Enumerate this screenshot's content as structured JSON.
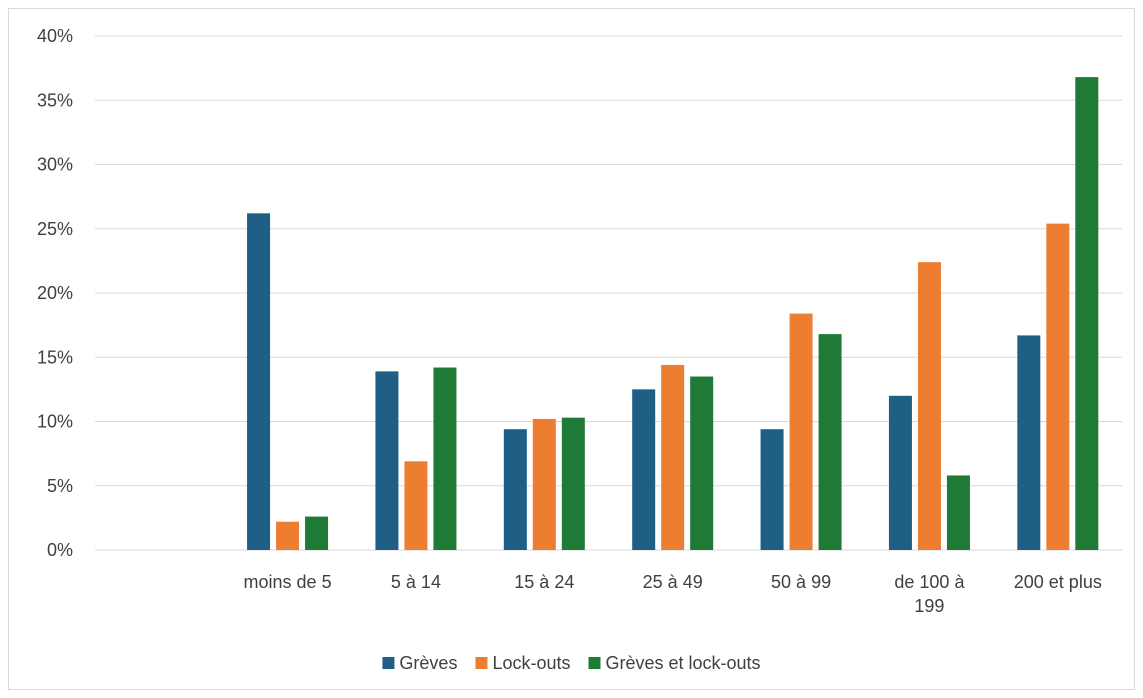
{
  "chart_data": {
    "type": "bar",
    "title": "",
    "xlabel": "",
    "ylabel": "",
    "categories": [
      [
        ""
      ],
      [
        "moins de 5"
      ],
      [
        "5 à 14"
      ],
      [
        "15 à 24"
      ],
      [
        "25 à 49"
      ],
      [
        "50 à 99"
      ],
      [
        "de 100 à",
        "199"
      ],
      [
        "200 et plus"
      ]
    ],
    "series": [
      {
        "name": "Grèves",
        "color": "#1f5f86",
        "values": [
          null,
          26.2,
          13.9,
          9.4,
          12.5,
          9.4,
          12.0,
          16.7
        ]
      },
      {
        "name": "Lock-outs",
        "color": "#ed7d31",
        "values": [
          null,
          2.2,
          6.9,
          10.2,
          14.4,
          18.4,
          22.4,
          25.4
        ]
      },
      {
        "name": "Grèves et lock-outs",
        "color": "#1e7a34",
        "values": [
          null,
          2.6,
          14.2,
          10.3,
          13.5,
          16.8,
          5.8,
          36.8
        ]
      }
    ],
    "ylim": [
      0,
      40
    ],
    "yticks": [
      0,
      5,
      10,
      15,
      20,
      25,
      30,
      35,
      40
    ],
    "ytick_labels": [
      "0%",
      "5%",
      "10%",
      "15%",
      "20%",
      "25%",
      "30%",
      "35%",
      "40%"
    ],
    "grid": true,
    "legend_position": "bottom"
  }
}
